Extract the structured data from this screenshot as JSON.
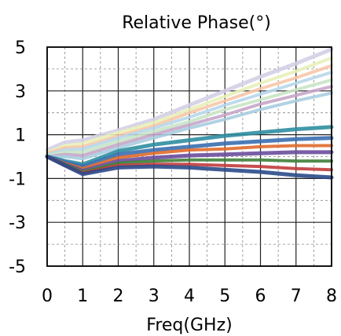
{
  "chart_data": {
    "type": "line",
    "title": "Relative Phase(°)",
    "xlabel": "Freq(GHz)",
    "ylabel": "",
    "xlim": [
      0,
      8
    ],
    "ylim": [
      -5,
      5
    ],
    "xticks": [
      0,
      1,
      2,
      3,
      4,
      5,
      6,
      7,
      8
    ],
    "yticks": [
      -5,
      -3,
      -1,
      1,
      3,
      5
    ],
    "grid": true,
    "legend": "none",
    "series": [
      {
        "color": "#d4cfe6",
        "width": 5,
        "x": [
          0,
          0.5,
          1,
          2,
          3,
          4,
          5,
          6,
          7,
          8
        ],
        "y": [
          0.3,
          0.65,
          0.75,
          1.2,
          1.7,
          2.35,
          3.0,
          3.65,
          4.25,
          4.9
        ]
      },
      {
        "color": "#e8f0b8",
        "width": 4,
        "x": [
          0,
          0.5,
          1,
          2,
          3,
          4,
          5,
          6,
          7,
          8
        ],
        "y": [
          0.2,
          0.5,
          0.6,
          1.1,
          1.55,
          2.15,
          2.75,
          3.35,
          3.9,
          4.5
        ]
      },
      {
        "color": "#f7c6a8",
        "width": 4,
        "x": [
          0,
          0.5,
          1,
          2,
          3,
          4,
          5,
          6,
          7,
          8
        ],
        "y": [
          0.15,
          0.4,
          0.45,
          0.95,
          1.4,
          2.0,
          2.55,
          3.1,
          3.6,
          4.15
        ]
      },
      {
        "color": "#b7d7ea",
        "width": 4,
        "x": [
          0,
          0.5,
          1,
          2,
          3,
          4,
          5,
          6,
          7,
          8
        ],
        "y": [
          0.1,
          0.3,
          0.35,
          0.85,
          1.3,
          1.8,
          2.35,
          2.85,
          3.35,
          3.85
        ]
      },
      {
        "color": "#c9e4c5",
        "width": 4,
        "x": [
          0,
          0.5,
          1,
          2,
          3,
          4,
          5,
          6,
          7,
          8
        ],
        "y": [
          0.05,
          0.2,
          0.2,
          0.7,
          1.15,
          1.6,
          2.15,
          2.6,
          3.05,
          3.5
        ]
      },
      {
        "color": "#c6a6c9",
        "width": 4,
        "x": [
          0,
          0.5,
          1,
          2,
          3,
          4,
          5,
          6,
          7,
          8
        ],
        "y": [
          0.0,
          0.1,
          0.05,
          0.55,
          1.0,
          1.45,
          1.9,
          2.4,
          2.8,
          3.2
        ]
      },
      {
        "color": "#a8cde0",
        "width": 4,
        "x": [
          0,
          0.5,
          1,
          2,
          3,
          4,
          5,
          6,
          7,
          8
        ],
        "y": [
          0.0,
          0.0,
          -0.1,
          0.4,
          0.85,
          1.3,
          1.7,
          2.15,
          2.55,
          2.9
        ]
      },
      {
        "color": "#2f8ea0",
        "width": 5,
        "x": [
          0,
          0.5,
          1,
          2,
          3,
          4,
          5,
          6,
          7,
          8
        ],
        "y": [
          0.0,
          -0.2,
          -0.35,
          0.25,
          0.55,
          0.75,
          0.95,
          1.1,
          1.25,
          1.35
        ]
      },
      {
        "color": "#3a6fb0",
        "width": 5,
        "x": [
          0,
          0.5,
          1,
          2,
          3,
          4,
          5,
          6,
          7,
          8
        ],
        "y": [
          0.0,
          -0.25,
          -0.45,
          0.1,
          0.3,
          0.45,
          0.6,
          0.7,
          0.8,
          0.85
        ]
      },
      {
        "color": "#e06a2c",
        "width": 4,
        "x": [
          0,
          0.5,
          1,
          2,
          3,
          4,
          5,
          6,
          7,
          8
        ],
        "y": [
          0.0,
          -0.3,
          -0.55,
          -0.05,
          0.15,
          0.3,
          0.35,
          0.45,
          0.5,
          0.5
        ]
      },
      {
        "color": "#6a4c9c",
        "width": 5,
        "x": [
          0,
          0.5,
          1,
          2,
          3,
          4,
          5,
          6,
          7,
          8
        ],
        "y": [
          0.0,
          -0.35,
          -0.65,
          -0.2,
          -0.05,
          0.05,
          0.1,
          0.15,
          0.2,
          0.2
        ]
      },
      {
        "color": "#3f7f3a",
        "width": 4,
        "x": [
          0,
          0.5,
          1,
          2,
          3,
          4,
          5,
          6,
          7,
          8
        ],
        "y": [
          0.0,
          -0.35,
          -0.7,
          -0.3,
          -0.2,
          -0.15,
          -0.15,
          -0.15,
          -0.2,
          -0.2
        ]
      },
      {
        "color": "#c23b3b",
        "width": 4,
        "x": [
          0,
          0.5,
          1,
          2,
          3,
          4,
          5,
          6,
          7,
          8
        ],
        "y": [
          0.0,
          -0.4,
          -0.75,
          -0.4,
          -0.35,
          -0.35,
          -0.4,
          -0.45,
          -0.55,
          -0.6
        ]
      },
      {
        "color": "#2b4a8a",
        "width": 5,
        "x": [
          0,
          0.5,
          1,
          2,
          3,
          4,
          5,
          6,
          7,
          8
        ],
        "y": [
          0.0,
          -0.4,
          -0.8,
          -0.5,
          -0.45,
          -0.5,
          -0.6,
          -0.7,
          -0.85,
          -0.95
        ]
      }
    ]
  }
}
